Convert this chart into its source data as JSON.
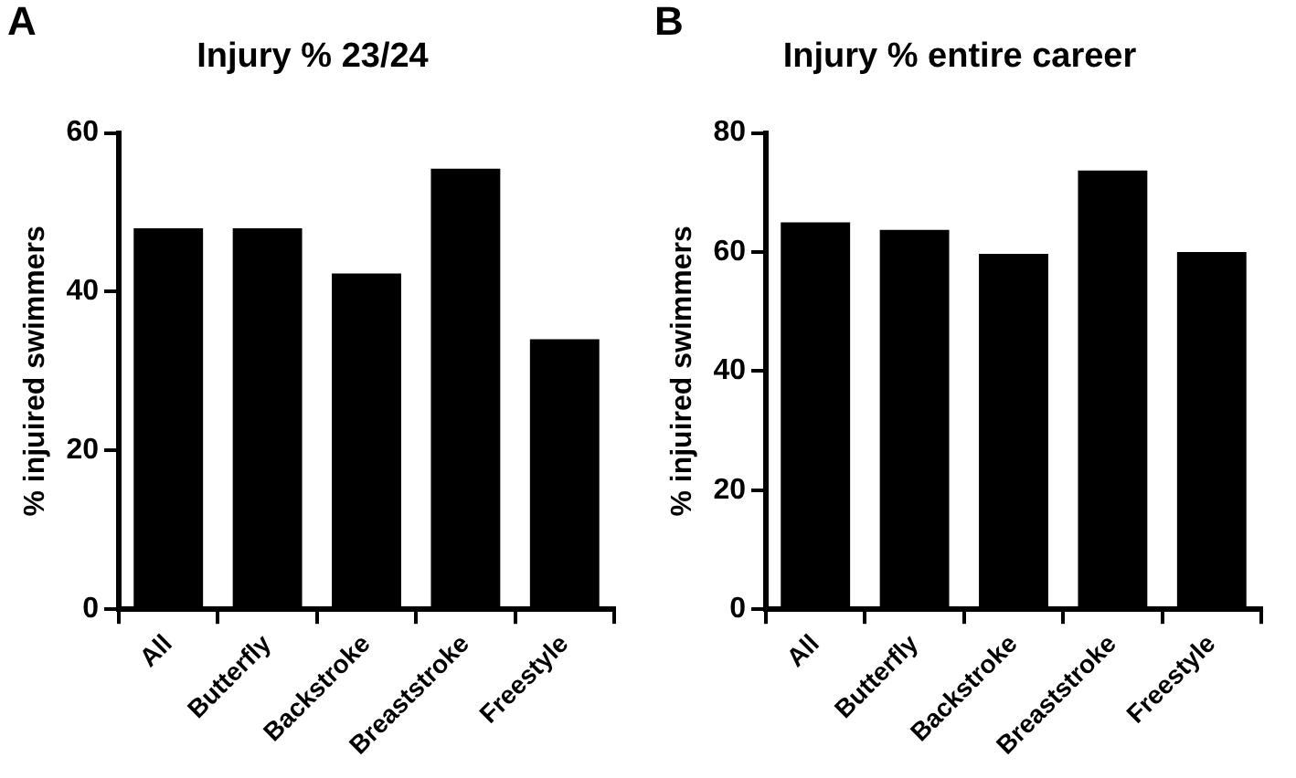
{
  "chart_data": [
    {
      "type": "bar",
      "title": "Injury % 23/24",
      "ylabel": "% injuired swimmers",
      "annotations": [
        "A"
      ],
      "categories": [
        "All",
        "Butterfly",
        "Backstroke",
        "Breaststroke",
        "Freestyle"
      ],
      "values": [
        48,
        48,
        42.3,
        55.5,
        34
      ],
      "color": "#000000",
      "ylim": [
        0,
        60
      ],
      "yticks": [
        0,
        20,
        40,
        60
      ],
      "grid": false,
      "legend": false
    },
    {
      "type": "bar",
      "title": "Injury % entire career",
      "ylabel": "% injuired swimmers",
      "annotations": [
        "B"
      ],
      "categories": [
        "All",
        "Butterfly",
        "Backstroke",
        "Breaststroke",
        "Freestyle"
      ],
      "values": [
        65,
        63.7,
        59.7,
        73.7,
        60
      ],
      "color": "#000000",
      "ylim": [
        0,
        80
      ],
      "yticks": [
        0,
        20,
        40,
        60,
        80
      ],
      "grid": false,
      "legend": false
    }
  ]
}
